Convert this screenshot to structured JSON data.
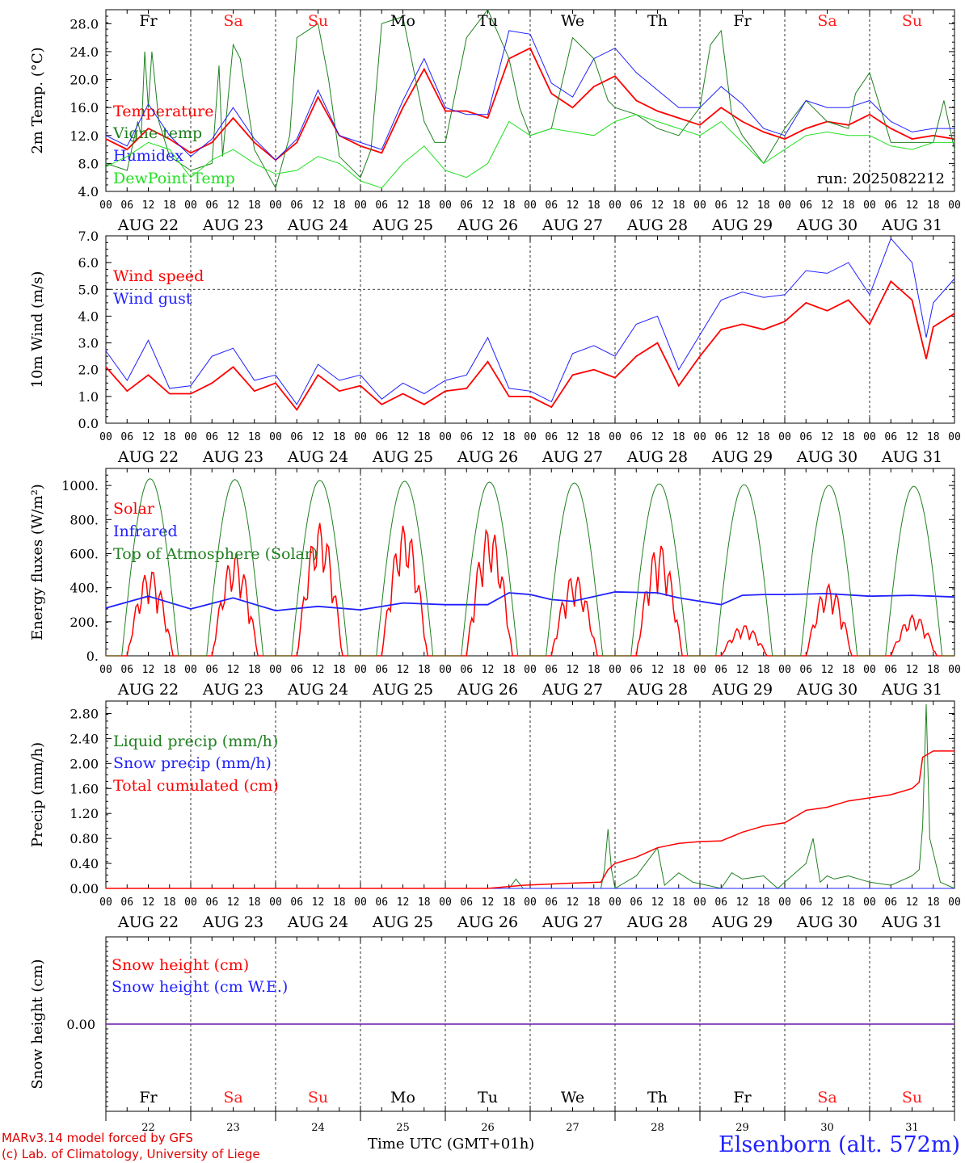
{
  "footer": {
    "model": "MARv3.14 model forced by GFS",
    "credit": "(c) Lab. of Climatology, University of Liege",
    "time_label": "Time UTC (GMT+01h)",
    "station": "Elsenborn (alt. 572m)"
  },
  "days": {
    "weekday": [
      "Fr",
      "Sa",
      "Su",
      "Mo",
      "Tu",
      "We",
      "Th",
      "Fr",
      "Sa",
      "Su"
    ],
    "weekend_color": "#ff2020",
    "weekday_color": "#000000",
    "dates": [
      "AUG 22",
      "AUG 23",
      "AUG 24",
      "AUG 25",
      "AUG 26",
      "AUG 27",
      "AUG 28",
      "AUG 29",
      "AUG 30",
      "AUG 31"
    ],
    "day_numbers": [
      "22",
      "23",
      "24",
      "25",
      "26",
      "27",
      "28",
      "29",
      "30",
      "31"
    ],
    "hour_ticks": [
      "00",
      "06",
      "12",
      "18"
    ],
    "end_tick": "00"
  },
  "chart_data": [
    {
      "type": "line",
      "ylabel": "2m Temp. (°C)",
      "ylim": [
        4,
        30
      ],
      "yticks": [
        "4.0",
        "8.0",
        "12.0",
        "16.0",
        "20.0",
        "24.0",
        "28.0"
      ],
      "annotation": "run: 2025082212",
      "x_unit": "hours from 22 Aug 00 UTC",
      "series": [
        {
          "name": "Temperature",
          "color": "#ff0000",
          "width": 1.8,
          "x": [
            0,
            6,
            12,
            18,
            24,
            30,
            36,
            42,
            48,
            54,
            60,
            66,
            72,
            78,
            84,
            90,
            96,
            102,
            108,
            114,
            120,
            126,
            132,
            138,
            144,
            150,
            156,
            162,
            168,
            174,
            180,
            186,
            192,
            198,
            204,
            210,
            216,
            222,
            228,
            234,
            240
          ],
          "y": [
            11.5,
            10,
            13,
            11.5,
            9.5,
            11,
            14.5,
            11,
            8.5,
            11,
            17.5,
            12,
            10.5,
            9.5,
            16,
            21.5,
            15.5,
            15.5,
            14.5,
            23,
            24.5,
            18,
            16,
            19,
            20.5,
            17,
            15.5,
            14.5,
            13.5,
            16,
            14,
            12.5,
            11.5,
            13,
            14,
            13.5,
            15,
            13,
            11.5,
            12,
            11.5
          ]
        },
        {
          "name": "Vigne temp",
          "color": "#208020",
          "width": 1,
          "x": [
            0,
            6,
            9,
            10,
            11,
            12,
            13,
            15,
            18,
            24,
            30,
            32,
            33,
            36,
            38,
            42,
            48,
            52,
            54,
            60,
            63,
            66,
            72,
            75,
            78,
            84,
            90,
            93,
            96,
            102,
            108,
            114,
            117,
            120,
            126,
            132,
            138,
            142,
            144,
            150,
            156,
            162,
            168,
            171,
            174,
            177,
            180,
            186,
            192,
            198,
            204,
            210,
            212,
            216,
            222,
            228,
            234,
            237,
            240
          ],
          "y": [
            8,
            7,
            14,
            12,
            24,
            16,
            24,
            14,
            9,
            7,
            8,
            22,
            9,
            25,
            23,
            10,
            4.5,
            12,
            26,
            28,
            20,
            9,
            6,
            10,
            28,
            29,
            14,
            11,
            11,
            26,
            30,
            23,
            16,
            12,
            13,
            26,
            23,
            17,
            16,
            15,
            13,
            12,
            16,
            25,
            27,
            15,
            12,
            8,
            13,
            17,
            14,
            13,
            18,
            21,
            11,
            11,
            11,
            17,
            10
          ]
        },
        {
          "name": "Humidex",
          "color": "#2020ff",
          "width": 1,
          "x": [
            0,
            6,
            12,
            18,
            24,
            30,
            36,
            42,
            48,
            54,
            60,
            66,
            72,
            78,
            84,
            90,
            96,
            102,
            108,
            114,
            120,
            126,
            132,
            138,
            144,
            150,
            156,
            162,
            168,
            174,
            180,
            186,
            192,
            198,
            204,
            210,
            216,
            222,
            228,
            234,
            240
          ],
          "y": [
            12,
            10.5,
            16.5,
            12,
            9,
            11.5,
            16,
            11.5,
            8.5,
            11.5,
            18.5,
            12,
            11,
            10,
            17,
            23,
            16,
            15,
            15,
            27,
            26.5,
            19.5,
            17.5,
            23,
            24.5,
            21,
            18.5,
            16,
            16,
            19,
            16.5,
            13,
            12,
            17,
            16,
            16,
            17,
            14,
            12.5,
            13,
            13
          ]
        },
        {
          "name": "DewPoint Temp",
          "color": "#20e020",
          "width": 1,
          "x": [
            0,
            6,
            12,
            18,
            24,
            30,
            36,
            42,
            48,
            54,
            60,
            66,
            72,
            78,
            84,
            90,
            96,
            102,
            108,
            114,
            120,
            126,
            132,
            138,
            144,
            150,
            156,
            162,
            168,
            174,
            180,
            186,
            192,
            198,
            204,
            210,
            216,
            222,
            228,
            234,
            240
          ],
          "y": [
            7.5,
            9,
            11,
            10,
            6,
            8.5,
            10,
            8,
            6.5,
            7,
            9,
            8,
            5.5,
            4.5,
            8,
            10.5,
            7,
            6,
            8,
            14,
            12,
            13,
            12.5,
            12,
            14,
            15,
            14,
            13,
            12,
            14,
            11,
            8,
            10,
            12,
            12.5,
            12,
            12,
            10.5,
            10,
            11,
            11
          ]
        }
      ]
    },
    {
      "type": "line",
      "ylabel": "10m Wind (m/s)",
      "ylim": [
        0,
        7
      ],
      "yticks": [
        "0.0",
        "1.0",
        "2.0",
        "3.0",
        "4.0",
        "5.0",
        "6.0",
        "7.0"
      ],
      "reference_line": 5.0,
      "series": [
        {
          "name": "Wind speed",
          "color": "#ff0000",
          "width": 1.8,
          "x": [
            0,
            6,
            12,
            18,
            24,
            30,
            36,
            42,
            48,
            54,
            60,
            66,
            72,
            78,
            84,
            90,
            96,
            102,
            108,
            114,
            120,
            126,
            132,
            138,
            144,
            150,
            156,
            162,
            168,
            174,
            180,
            186,
            192,
            198,
            204,
            210,
            216,
            222,
            228,
            232,
            234,
            240
          ],
          "y": [
            2.1,
            1.2,
            1.8,
            1.1,
            1.1,
            1.5,
            2.1,
            1.2,
            1.5,
            0.5,
            1.8,
            1.2,
            1.4,
            0.7,
            1.1,
            0.7,
            1.2,
            1.3,
            2.3,
            1.0,
            1.0,
            0.6,
            1.8,
            2.0,
            1.7,
            2.5,
            3.0,
            1.4,
            2.5,
            3.5,
            3.7,
            3.5,
            3.8,
            4.5,
            4.2,
            4.6,
            3.7,
            5.3,
            4.6,
            2.4,
            3.6,
            4.1
          ]
        },
        {
          "name": "Wind gust",
          "color": "#2020ff",
          "width": 1,
          "x": [
            0,
            6,
            12,
            18,
            24,
            30,
            36,
            42,
            48,
            54,
            60,
            66,
            72,
            78,
            84,
            90,
            96,
            102,
            108,
            114,
            120,
            126,
            132,
            138,
            144,
            150,
            156,
            162,
            168,
            174,
            180,
            186,
            192,
            198,
            204,
            210,
            216,
            222,
            228,
            232,
            234,
            240
          ],
          "y": [
            2.7,
            1.6,
            3.1,
            1.3,
            1.4,
            2.5,
            2.8,
            1.6,
            1.8,
            0.7,
            2.2,
            1.6,
            1.8,
            0.9,
            1.5,
            1.1,
            1.6,
            1.8,
            3.2,
            1.3,
            1.2,
            0.8,
            2.6,
            2.9,
            2.5,
            3.7,
            4.0,
            2.0,
            3.3,
            4.6,
            4.9,
            4.7,
            4.8,
            5.7,
            5.6,
            6.0,
            4.8,
            6.9,
            6.0,
            3.2,
            4.5,
            5.4
          ]
        }
      ]
    },
    {
      "type": "line",
      "ylabel": "Energy fluxes (W/m²)",
      "ylim": [
        0,
        1100
      ],
      "yticks": [
        "0.",
        "200.",
        "400.",
        "600.",
        "800.",
        "1000."
      ],
      "series": [
        {
          "name": "Solar",
          "color": "#ff0000",
          "width": 1.5,
          "peaks": [
            510,
            600,
            780,
            770,
            760,
            480,
            660,
            180,
            420,
            240
          ]
        },
        {
          "name": "Infrared",
          "color": "#2020ff",
          "width": 1.8,
          "x": [
            0,
            12,
            24,
            36,
            48,
            60,
            72,
            84,
            96,
            108,
            114,
            120,
            126,
            132,
            144,
            156,
            162,
            168,
            174,
            180,
            186,
            192,
            204,
            216,
            228,
            240
          ],
          "y": [
            280,
            350,
            275,
            340,
            265,
            290,
            270,
            310,
            300,
            300,
            370,
            360,
            330,
            320,
            375,
            370,
            340,
            320,
            300,
            355,
            360,
            360,
            365,
            350,
            355,
            345
          ]
        },
        {
          "name": "Top of Atmosphere (Solar)",
          "color": "#208020",
          "width": 1,
          "peaks": [
            1040,
            1035,
            1030,
            1025,
            1020,
            1015,
            1010,
            1005,
            1000,
            995
          ]
        }
      ]
    },
    {
      "type": "line",
      "ylabel": "Precip (mm/h)",
      "ylim": [
        0,
        3.0
      ],
      "yticks": [
        "0.00",
        "0.40",
        "0.80",
        "1.20",
        "1.60",
        "2.00",
        "2.40",
        "2.80"
      ],
      "series": [
        {
          "name": "Liquid precip (mm/h)",
          "color": "#208020",
          "width": 1,
          "x": [
            0,
            114,
            116,
            118,
            120,
            130,
            140,
            141,
            142,
            143,
            144,
            150,
            154,
            156,
            158,
            162,
            166,
            174,
            177,
            180,
            186,
            190,
            192,
            198,
            200,
            202,
            204,
            206,
            210,
            216,
            222,
            228,
            230,
            231,
            232,
            233,
            236,
            240
          ],
          "y": [
            0,
            0,
            0.15,
            0,
            0,
            0,
            0,
            0.3,
            0.95,
            0.3,
            0,
            0.2,
            0.5,
            0.65,
            0.05,
            0.25,
            0.1,
            0,
            0.25,
            0.15,
            0.2,
            0,
            0.1,
            0.4,
            0.8,
            0.1,
            0.2,
            0.15,
            0.2,
            0.1,
            0.05,
            0.2,
            0.3,
            1.0,
            2.95,
            0.8,
            0.1,
            0
          ]
        },
        {
          "name": "Snow precip (mm/h)",
          "color": "#2020ff",
          "width": 1,
          "x": [
            0,
            240
          ],
          "y": [
            0,
            0
          ]
        },
        {
          "name": "Total cumulated (cm)",
          "color": "#ff0000",
          "width": 1.5,
          "x": [
            0,
            108,
            118,
            130,
            140,
            142,
            144,
            150,
            156,
            162,
            168,
            174,
            180,
            186,
            192,
            198,
            204,
            210,
            216,
            222,
            228,
            230,
            231,
            234,
            240
          ],
          "y": [
            0,
            0,
            0.05,
            0.08,
            0.1,
            0.3,
            0.4,
            0.5,
            0.65,
            0.72,
            0.75,
            0.76,
            0.9,
            1.0,
            1.05,
            1.25,
            1.3,
            1.4,
            1.45,
            1.5,
            1.6,
            1.7,
            2.1,
            2.2,
            2.2
          ]
        }
      ]
    },
    {
      "type": "line",
      "ylabel": "Snow height (cm)",
      "ylim": [
        -1,
        1
      ],
      "yticks": [
        "0.00"
      ],
      "series": [
        {
          "name": "Snow height (cm)",
          "color": "#ff0000",
          "width": 1.5,
          "x": [
            0,
            240
          ],
          "y": [
            0,
            0
          ]
        },
        {
          "name": "Snow height (cm W.E.)",
          "color": "#2020ff",
          "width": 1,
          "x": [
            0,
            240
          ],
          "y": [
            0,
            0
          ]
        }
      ]
    }
  ]
}
